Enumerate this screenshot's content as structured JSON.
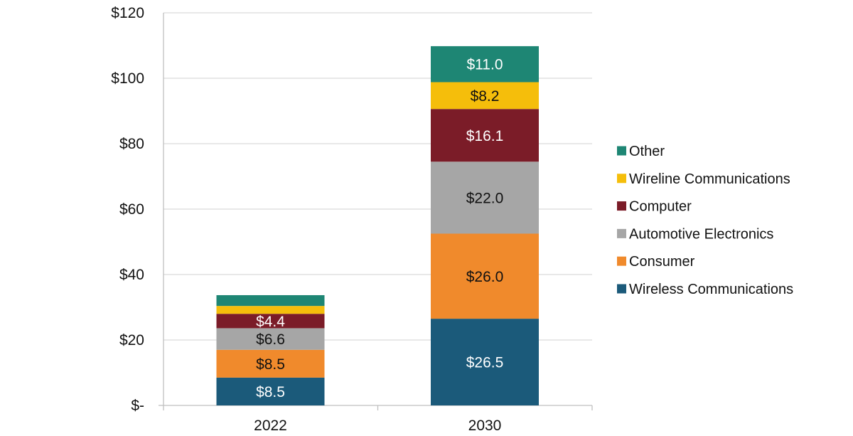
{
  "chart_data": {
    "type": "bar",
    "stacked": true,
    "title": "",
    "xlabel": "",
    "ylabel": "",
    "categories": [
      "2022",
      "2030"
    ],
    "ylim": [
      0,
      120
    ],
    "yticks": [
      0,
      20,
      40,
      60,
      80,
      100,
      120
    ],
    "ytick_labels": [
      "$-",
      "$20",
      "$40",
      "$60",
      "$80",
      "$100",
      "$120"
    ],
    "grid": true,
    "legend_position": "right",
    "series": [
      {
        "name": "Wireless Communications",
        "color": "#1b5a7a",
        "label_color": "#ffffff",
        "values": [
          8.5,
          26.5
        ],
        "labels": [
          "$8.5",
          "$26.5"
        ]
      },
      {
        "name": "Consumer",
        "color": "#f08a2c",
        "label_color": "#111111",
        "values": [
          8.5,
          26.0
        ],
        "labels": [
          "$8.5",
          "$26.0"
        ]
      },
      {
        "name": "Automotive Electronics",
        "color": "#a6a6a6",
        "label_color": "#111111",
        "values": [
          6.6,
          22.0
        ],
        "labels": [
          "$6.6",
          "$22.0"
        ]
      },
      {
        "name": "Computer",
        "color": "#7b1c28",
        "label_color": "#ffffff",
        "values": [
          4.4,
          16.1
        ],
        "labels": [
          "$4.4",
          "$16.1"
        ]
      },
      {
        "name": "Wireline Communications",
        "color": "#f5be0b",
        "label_color": "#111111",
        "values": [
          2.4,
          8.2
        ],
        "labels": [
          "",
          "$8.2"
        ]
      },
      {
        "name": "Other",
        "color": "#1e8674",
        "label_color": "#ffffff",
        "values": [
          3.3,
          11.0
        ],
        "labels": [
          "",
          "$11.0"
        ]
      }
    ],
    "legend_order": [
      "Other",
      "Wireline Communications",
      "Computer",
      "Automotive Electronics",
      "Consumer",
      "Wireless Communications"
    ],
    "colors": {
      "grid": "#d9d9d9",
      "axis": "#bfbfbf",
      "text": "#111111"
    }
  }
}
